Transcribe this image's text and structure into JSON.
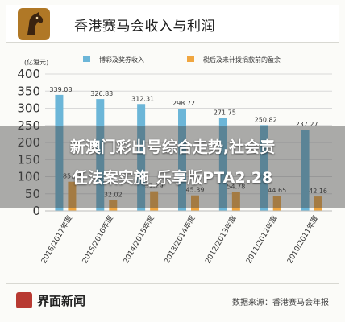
{
  "header": {
    "title": "香港赛马会收入与利润"
  },
  "overlay": {
    "line1": "新澳门彩出号综合走势,社会责",
    "line2": "任法案实施_乐享版PTA2.28"
  },
  "footer": {
    "brand": "界面新闻",
    "source": "数据来源：香港赛马会年报"
  },
  "colors": {
    "series_revenue": "#6cb6d8",
    "series_profit": "#f0a640",
    "grid": "#d9d9d9",
    "text": "#333333"
  },
  "chart_data": {
    "type": "bar",
    "ylabel": "(亿港元)",
    "ylim": [
      0,
      400
    ],
    "yticks": [
      0,
      50,
      100,
      150,
      200,
      250,
      300,
      350,
      400
    ],
    "categories": [
      "2016/2017年度",
      "2015/2016年度",
      "2014/2015年度",
      "2013/2014年度",
      "2012/2013年度",
      "2011/2012年度",
      "2010/2011年度"
    ],
    "series": [
      {
        "name": "博彩及奖券收入",
        "values": [
          339.08,
          326.83,
          312.31,
          298.72,
          271.75,
          250.82,
          237.27
        ],
        "labels": [
          "339.08",
          "326.83",
          "312.31",
          "298.72",
          "271.75",
          "250.82",
          "237.27"
        ]
      },
      {
        "name": "税后及未计拨捐款前的盈余",
        "values": [
          85.33,
          32.02,
          57.29,
          45.39,
          54.78,
          44.65,
          42.16
        ],
        "labels": [
          "85.33",
          "32.02",
          "57.29",
          "45.39",
          "54.78",
          "44.65",
          "42.16"
        ]
      }
    ],
    "legend_position": "top",
    "grid": true
  }
}
